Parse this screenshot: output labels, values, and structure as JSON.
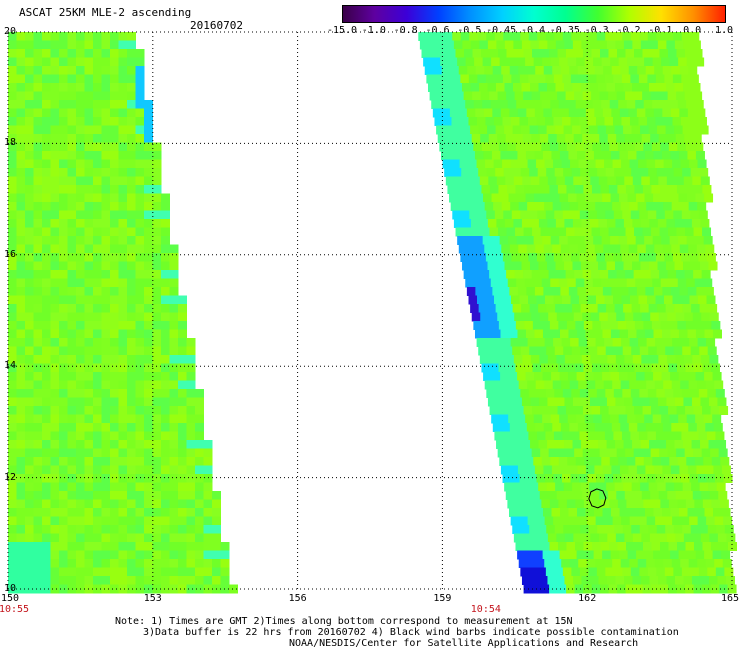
{
  "header": {
    "title": "ASCAT 25KM MLE-2 ascending",
    "date": "20160702"
  },
  "colorbar": {
    "labels": [
      "-15.0",
      "-1.0",
      "-0.8",
      "-0.6",
      "-0.5",
      "-0.45",
      "-0.4",
      "-0.35",
      "-0.3",
      "-0.2",
      "-0.1",
      "0.0",
      "1.0"
    ],
    "colors": [
      "#3a0048",
      "#5e00a0",
      "#3c00d8",
      "#0040ff",
      "#0090ff",
      "#00d0ff",
      "#00ffd0",
      "#00ff90",
      "#40ff30",
      "#b0ff00",
      "#ffe000",
      "#ff9000",
      "#ff2000"
    ]
  },
  "axes": {
    "lat_labels": [
      "20",
      "18",
      "16",
      "14",
      "12",
      "10"
    ],
    "lon_labels": [
      "150",
      "153",
      "156",
      "159",
      "162",
      "165"
    ],
    "time_labels": [
      {
        "text": "10:55",
        "lon": 150
      },
      {
        "text": "10:54",
        "lon": 159.9
      }
    ]
  },
  "map": {
    "lon_range": [
      150,
      165
    ],
    "lat_range": [
      10,
      20
    ],
    "swath_left": {
      "west_edge_lon": 150.0,
      "east_edge_lon_top": 152.6,
      "east_edge_lon_bottom": 154.6
    },
    "swath_right": {
      "west_edge_lon_top": 158.5,
      "west_edge_lon_bottom": 160.7,
      "east_edge_lon_top": 164.2,
      "east_edge_lon_bottom": 165.0
    },
    "base_color": "#80ff20",
    "contamination_lat": 11.6,
    "contamination_lon": 162.2
  },
  "notes": {
    "line1": "Note: 1) Times are GMT 2)Times along bottom correspond to measurement at 15N",
    "line2": "3)Data buffer is 22 hrs from 20160702 4) Black wind barbs indicate possible contamination",
    "line3": "NOAA/NESDIS/Center for Satellite Applications and Research"
  }
}
